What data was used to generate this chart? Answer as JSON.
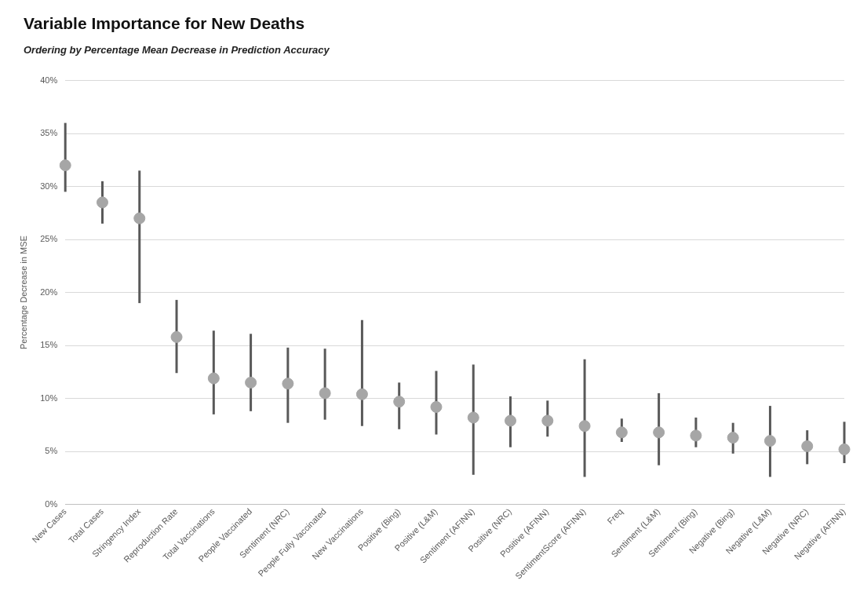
{
  "chart_data": {
    "type": "scatter",
    "title": "Variable Importance for New Deaths",
    "subtitle": "Ordering by Percentage Mean Decrease in Prediction Accuracy",
    "ylabel": "Percentage Decrease in MSE",
    "categories": [
      "New Cases",
      "Total Cases",
      "Stringency Index",
      "Reproduction Rate",
      "Total Vaccinations",
      "People Vaccinated",
      "Sentiment (NRC)",
      "People Fully Vaccinated",
      "New Vaccinations",
      "Positive (Bing)",
      "Positive (L&M)",
      "Sentiment (AFINN)",
      "Positive (NRC)",
      "Positive (AFINN)",
      "SentimentScore (AFINN)",
      "Freq",
      "Sentiment (L&M)",
      "Sentiment (Bing)",
      "Negative (Bing)",
      "Negative (L&M)",
      "Negative (NRC)",
      "Negative (AFINN)"
    ],
    "values": [
      32,
      28.5,
      27,
      15.8,
      11.9,
      11.5,
      11.4,
      10.5,
      10.4,
      9.7,
      9.2,
      8.2,
      7.9,
      7.9,
      7.4,
      6.8,
      6.8,
      6.5,
      6.3,
      6.0,
      5.5,
      5.2
    ],
    "errors": [
      [
        29.5,
        36
      ],
      [
        26.5,
        30.5
      ],
      [
        19,
        31.5
      ],
      [
        12.4,
        19.3
      ],
      [
        8.5,
        16.4
      ],
      [
        8.8,
        16.1
      ],
      [
        7.7,
        14.8
      ],
      [
        8,
        14.7
      ],
      [
        7.4,
        17.4
      ],
      [
        7.1,
        11.5
      ],
      [
        6.6,
        12.6
      ],
      [
        2.8,
        13.2
      ],
      [
        5.4,
        10.2
      ],
      [
        6.4,
        9.8
      ],
      [
        2.6,
        13.7
      ],
      [
        5.9,
        8.1
      ],
      [
        3.7,
        10.5
      ],
      [
        5.4,
        8.2
      ],
      [
        4.8,
        7.7
      ],
      [
        2.6,
        9.3
      ],
      [
        3.8,
        7.0
      ],
      [
        3.9,
        7.8
      ]
    ],
    "color": "#a6a6a6",
    "marker": "circle",
    "ylim": [
      0,
      40
    ],
    "yticks": [
      {
        "value": 0,
        "label": "0%"
      },
      {
        "value": 5,
        "label": "5%"
      },
      {
        "value": 10,
        "label": "10%"
      },
      {
        "value": 15,
        "label": "15%"
      },
      {
        "value": 20,
        "label": "20%"
      },
      {
        "value": 25,
        "label": "25%"
      },
      {
        "value": 30,
        "label": "30%"
      },
      {
        "value": 35,
        "label": "35%"
      },
      {
        "value": 40,
        "label": "40%"
      }
    ],
    "grid": "y"
  }
}
